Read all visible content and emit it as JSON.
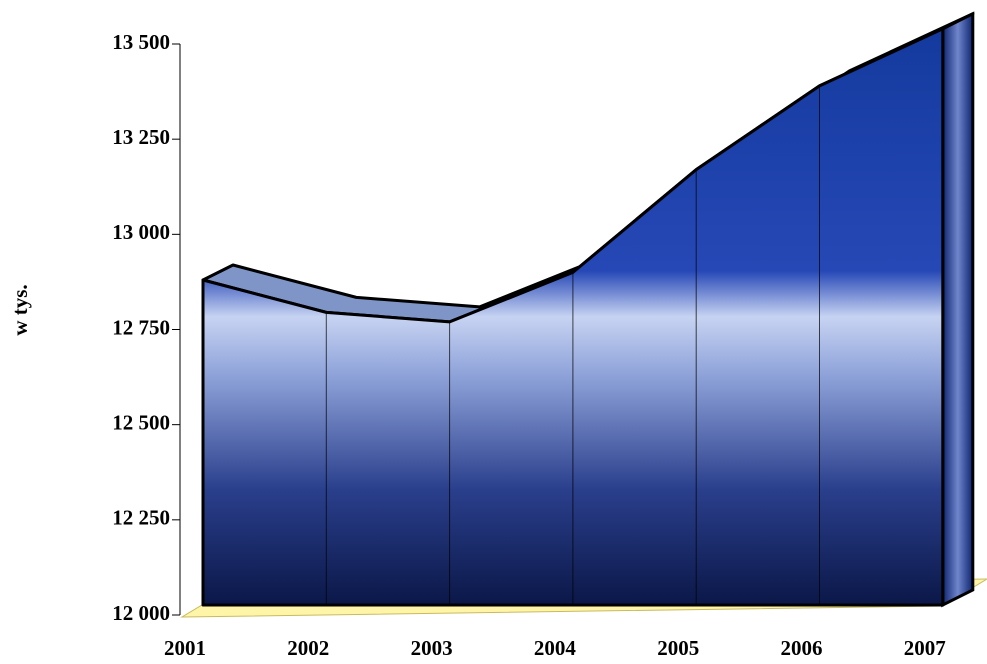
{
  "chart_data": {
    "type": "area",
    "y_label": "w tys.",
    "categories": [
      "2001",
      "2002",
      "2003",
      "2004",
      "2005",
      "2006",
      "2007"
    ],
    "values": [
      12880,
      12795,
      12770,
      12900,
      13170,
      13390,
      13540
    ],
    "ylim": [
      12000,
      13500
    ],
    "yticks": [
      {
        "value": 12000,
        "label": "12 000"
      },
      {
        "value": 12250,
        "label": "12 250"
      },
      {
        "value": 12500,
        "label": "12 500"
      },
      {
        "value": 12750,
        "label": "12 750"
      },
      {
        "value": 13000,
        "label": "13 000"
      },
      {
        "value": 13250,
        "label": "13 250"
      },
      {
        "value": 13500,
        "label": "13 500"
      }
    ],
    "color": "#1c3ea6",
    "floor_color": "#fff5a8"
  }
}
